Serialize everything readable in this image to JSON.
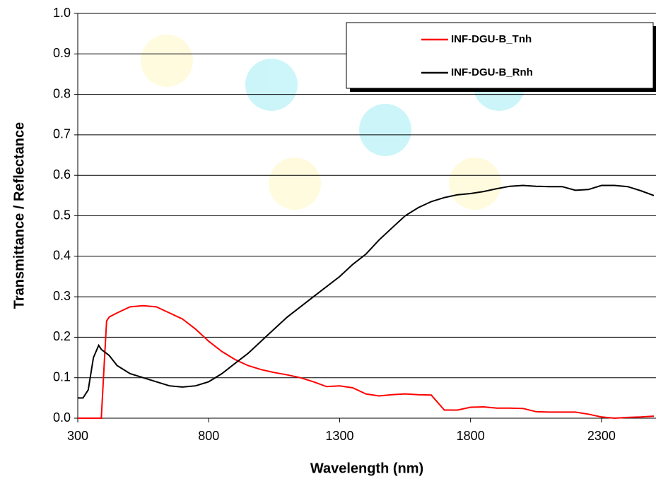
{
  "chart_data": {
    "type": "line",
    "x_label": "Wavelength  (nm)",
    "y_label": "Transmittance / Reflectance",
    "x": [
      300,
      320,
      340,
      360,
      380,
      390,
      400,
      410,
      420,
      450,
      500,
      550,
      600,
      650,
      700,
      750,
      800,
      850,
      900,
      950,
      1000,
      1050,
      1100,
      1150,
      1200,
      1250,
      1300,
      1350,
      1400,
      1450,
      1500,
      1550,
      1600,
      1650,
      1700,
      1750,
      1800,
      1850,
      1900,
      1950,
      2000,
      2050,
      2100,
      2150,
      2200,
      2250,
      2300,
      2350,
      2400,
      2450,
      2500
    ],
    "series": [
      {
        "name": "INF-DGU-B_Tnh",
        "color": "#ff0000",
        "values": [
          0,
          0,
          0,
          0,
          0,
          0,
          0.12,
          0.24,
          0.25,
          0.26,
          0.275,
          0.278,
          0.275,
          0.26,
          0.245,
          0.22,
          0.19,
          0.165,
          0.145,
          0.13,
          0.12,
          0.113,
          0.107,
          0.1,
          0.09,
          0.078,
          0.08,
          0.075,
          0.06,
          0.055,
          0.058,
          0.06,
          0.058,
          0.057,
          0.02,
          0.02,
          0.027,
          0.028,
          0.025,
          0.025,
          0.024,
          0.016,
          0.015,
          0.015,
          0.015,
          0.01,
          0.003,
          0,
          0.002,
          0.003,
          0.005
        ]
      },
      {
        "name": "INF-DGU-B_Rnh",
        "color": "#000000",
        "values": [
          0.05,
          0.05,
          0.07,
          0.15,
          0.18,
          0.17,
          0.165,
          0.16,
          0.155,
          0.13,
          0.11,
          0.1,
          0.09,
          0.08,
          0.077,
          0.08,
          0.09,
          0.11,
          0.135,
          0.16,
          0.19,
          0.22,
          0.25,
          0.275,
          0.3,
          0.325,
          0.35,
          0.38,
          0.405,
          0.44,
          0.47,
          0.5,
          0.52,
          0.535,
          0.545,
          0.552,
          0.555,
          0.56,
          0.567,
          0.573,
          0.575,
          0.573,
          0.572,
          0.572,
          0.563,
          0.565,
          0.575,
          0.575,
          0.572,
          0.562,
          0.55
        ]
      }
    ],
    "xlim": [
      300,
      2500
    ],
    "xticks": [
      300,
      800,
      1300,
      1800,
      2300
    ],
    "ylim": [
      0,
      1
    ],
    "yticks": [
      {
        "value": 0,
        "label": "0.0"
      },
      0.1,
      0.2,
      0.3,
      0.4,
      0.5,
      0.6,
      0.7,
      0.8,
      0.9,
      {
        "value": 1,
        "label": "1.0"
      }
    ],
    "grid": true,
    "legend": "upper right"
  }
}
